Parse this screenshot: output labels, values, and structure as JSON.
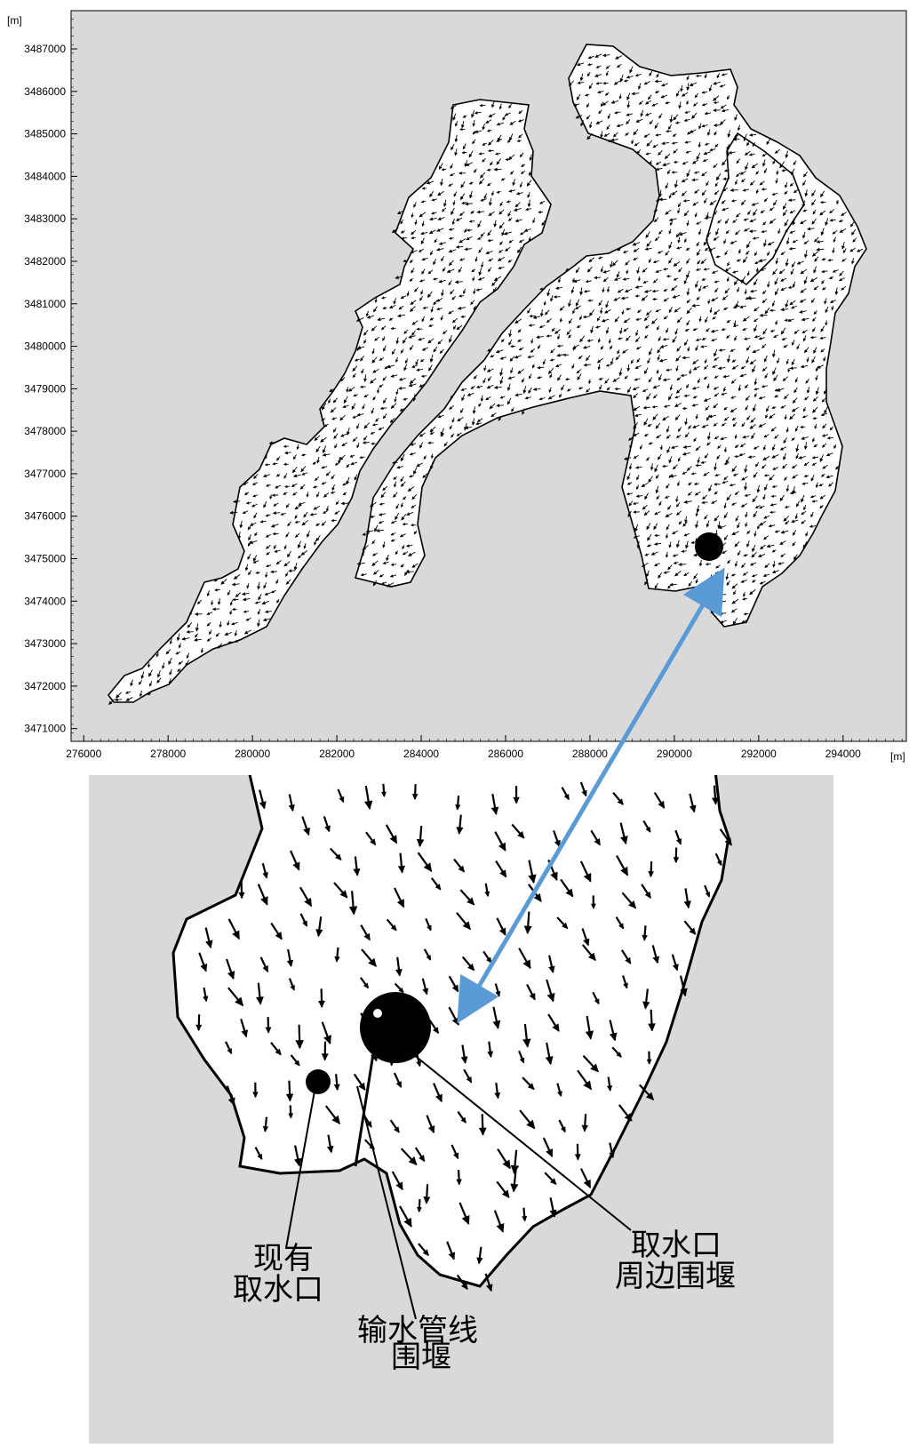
{
  "overview_map": {
    "y_unit": "[m]",
    "x_unit": "[m]",
    "y_ticks": [
      "3487000",
      "3486000",
      "3485000",
      "3484000",
      "3483000",
      "3482000",
      "3481000",
      "3480000",
      "3479000",
      "3478000",
      "3477000",
      "3476000",
      "3475000",
      "3474000",
      "3473000",
      "3472000",
      "3471000"
    ],
    "x_ticks": [
      "276000",
      "278000",
      "280000",
      "282000",
      "284000",
      "286000",
      "288000",
      "290000",
      "292000",
      "294000"
    ],
    "xlim": [
      275700,
      295500
    ],
    "ylim": [
      3470700,
      3487900
    ],
    "background_color": "#d9d9d9",
    "water_color": "#ffffff"
  },
  "detail_map": {
    "labels": {
      "existing_intake_line1": "现有",
      "existing_intake_line2": "取水口",
      "pipeline_cofferdam_line1": "输水管线",
      "pipeline_cofferdam_line2": "围堰",
      "intake_cofferdam_line1": "取水口",
      "intake_cofferdam_line2": "周边围堰"
    },
    "background_color": "#d9d9d9",
    "water_color": "#ffffff"
  },
  "connector_arrow": {
    "color": "#5b9bd5"
  }
}
